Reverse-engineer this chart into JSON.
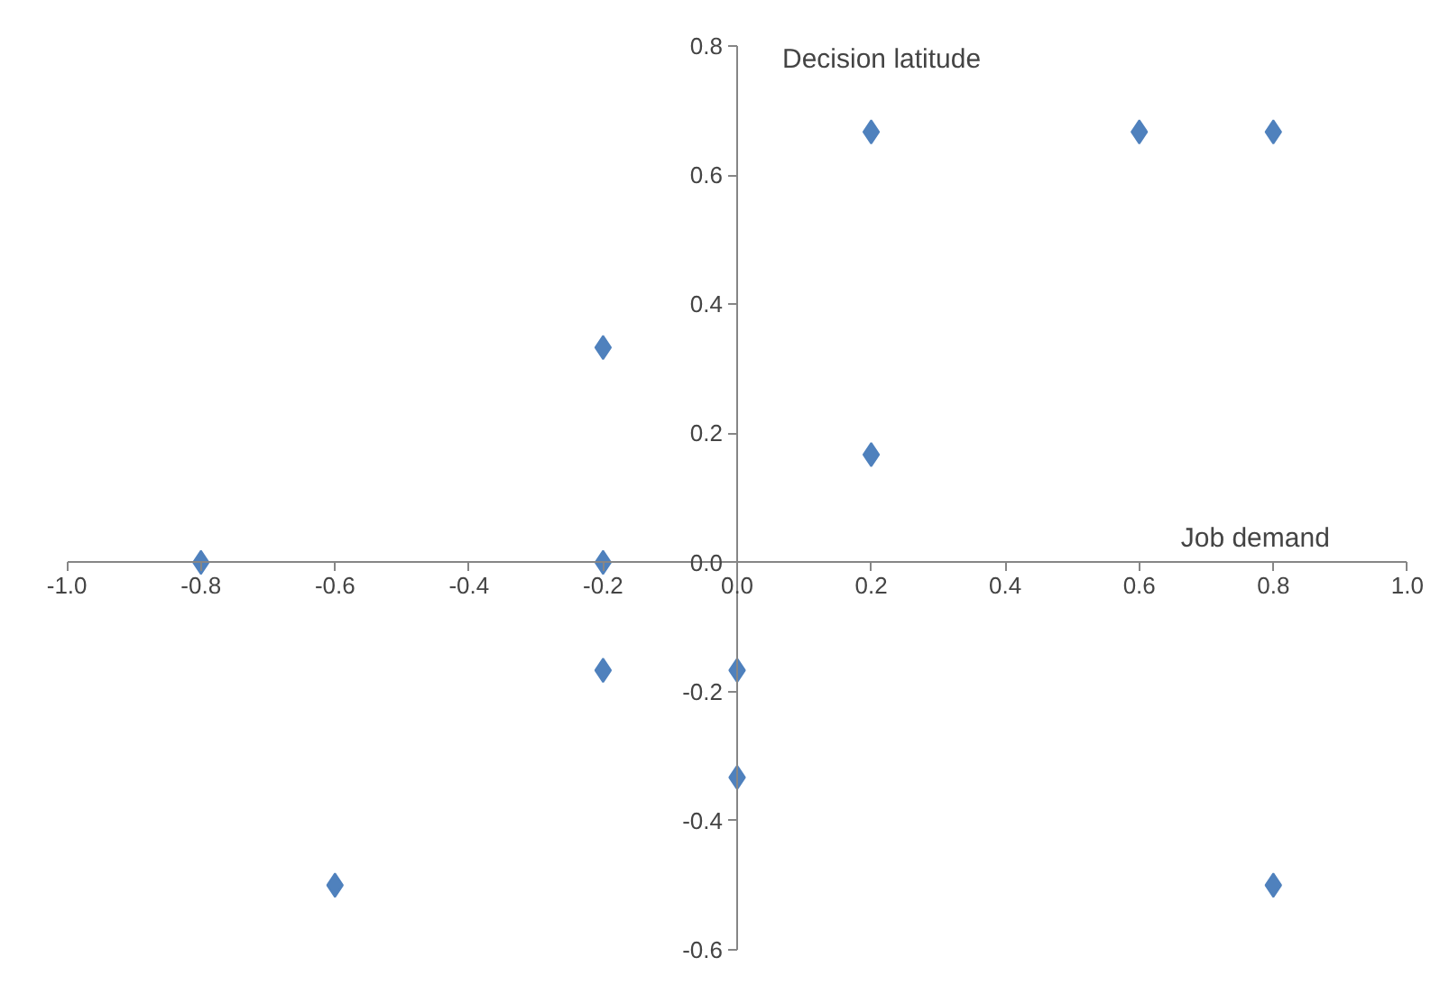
{
  "chart_data": {
    "type": "scatter",
    "xlabel": "Job demand",
    "ylabel": "Decision latitude",
    "x": [
      -0.8,
      -0.6,
      -0.2,
      -0.2,
      -0.2,
      0.0,
      0.0,
      0.2,
      0.2,
      0.6,
      0.8,
      0.8
    ],
    "series": [
      {
        "color": "#4f81bd",
        "values": [
          0.0,
          -0.5,
          0.333,
          0.0,
          -0.167,
          -0.167,
          -0.333,
          0.667,
          0.167,
          0.667,
          0.667,
          -0.5
        ]
      }
    ],
    "xlim": [
      -1.0,
      1.0
    ],
    "ylim": [
      -0.6,
      0.8
    ],
    "xticks": [
      {
        "value": -1.0,
        "label": "-1.0"
      },
      -0.8,
      -0.6,
      -0.4,
      -0.2,
      {
        "value": 0,
        "label": "0.0"
      },
      0.2,
      0.4,
      0.6,
      0.8,
      {
        "value": 1.0,
        "label": "1.0"
      }
    ],
    "yticks": [
      -0.6,
      -0.4,
      -0.2,
      {
        "value": 0,
        "label": "0.0"
      },
      0.2,
      0.4,
      0.6,
      0.8
    ],
    "marker": "diamond",
    "grid": false
  }
}
